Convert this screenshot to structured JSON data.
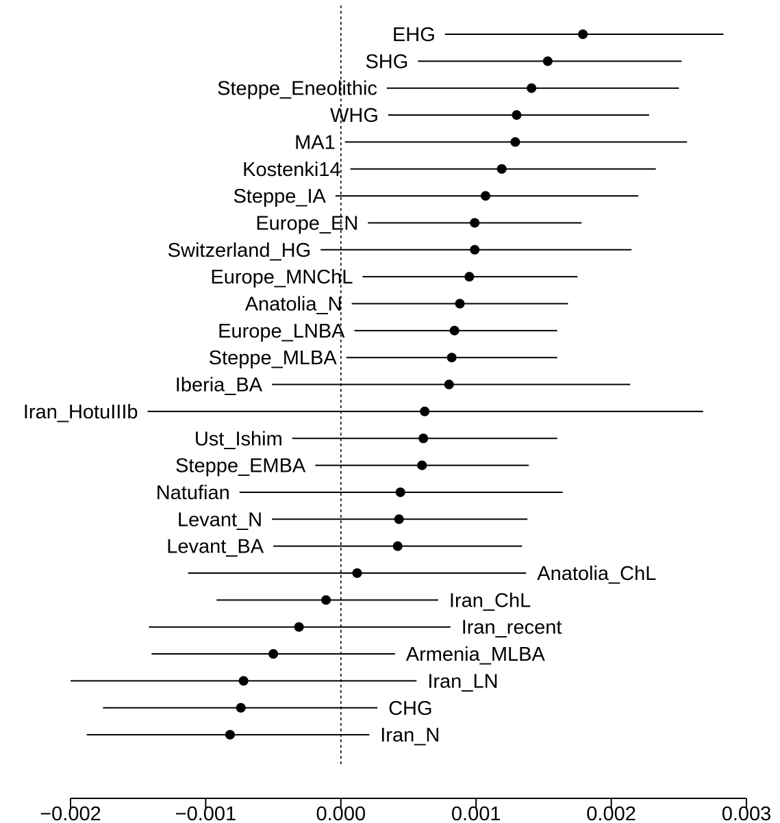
{
  "chart_data": {
    "type": "scatter",
    "title": "",
    "xlabel": "",
    "ylabel": "",
    "xlim": [
      -0.002,
      0.003
    ],
    "x_ticks": [
      -0.002,
      -0.001,
      0.0,
      0.001,
      0.002,
      0.003
    ],
    "x_tick_labels": [
      "−0.002",
      "−0.001",
      "0.000",
      "0.001",
      "0.002",
      "0.003"
    ],
    "reference_line": {
      "x": 0.0,
      "style": "dashed"
    },
    "grid": false,
    "series": [
      {
        "label": "EHG",
        "value": 0.00179,
        "low": 0.00077,
        "high": 0.00283,
        "label_side": "left"
      },
      {
        "label": "SHG",
        "value": 0.00153,
        "low": 0.00057,
        "high": 0.00252,
        "label_side": "left"
      },
      {
        "label": "Steppe_Eneolithic",
        "value": 0.00141,
        "low": 0.00034,
        "high": 0.0025,
        "label_side": "left"
      },
      {
        "label": "WHG",
        "value": 0.0013,
        "low": 0.00035,
        "high": 0.00228,
        "label_side": "left"
      },
      {
        "label": "MA1",
        "value": 0.00129,
        "low": 3e-05,
        "high": 0.00256,
        "label_side": "left"
      },
      {
        "label": "Kostenki14",
        "value": 0.00119,
        "low": 7e-05,
        "high": 0.00233,
        "label_side": "left"
      },
      {
        "label": "Steppe_IA",
        "value": 0.00107,
        "low": -4e-05,
        "high": 0.0022,
        "label_side": "left"
      },
      {
        "label": "Europe_EN",
        "value": 0.00099,
        "low": 0.0002,
        "high": 0.00178,
        "label_side": "left"
      },
      {
        "label": "Switzerland_HG",
        "value": 0.00099,
        "low": -0.00015,
        "high": 0.00215,
        "label_side": "left"
      },
      {
        "label": "Europe_MNChL",
        "value": 0.00095,
        "low": 0.00016,
        "high": 0.00175,
        "label_side": "left"
      },
      {
        "label": "Anatolia_N",
        "value": 0.00088,
        "low": 8e-05,
        "high": 0.00168,
        "label_side": "left"
      },
      {
        "label": "Europe_LNBA",
        "value": 0.00084,
        "low": 0.0001,
        "high": 0.0016,
        "label_side": "left"
      },
      {
        "label": "Steppe_MLBA",
        "value": 0.00082,
        "low": 4e-05,
        "high": 0.0016,
        "label_side": "left"
      },
      {
        "label": "Iberia_BA",
        "value": 0.0008,
        "low": -0.00051,
        "high": 0.00214,
        "label_side": "left"
      },
      {
        "label": "Iran_HotuIIIb",
        "value": 0.00062,
        "low": -0.00143,
        "high": 0.00268,
        "label_side": "left"
      },
      {
        "label": "Ust_Ishim",
        "value": 0.00061,
        "low": -0.00036,
        "high": 0.0016,
        "label_side": "left"
      },
      {
        "label": "Steppe_EMBA",
        "value": 0.0006,
        "low": -0.00019,
        "high": 0.00139,
        "label_side": "left"
      },
      {
        "label": "Natufian",
        "value": 0.00044,
        "low": -0.00075,
        "high": 0.00164,
        "label_side": "left"
      },
      {
        "label": "Levant_N",
        "value": 0.00043,
        "low": -0.00051,
        "high": 0.00138,
        "label_side": "left"
      },
      {
        "label": "Levant_BA",
        "value": 0.00042,
        "low": -0.0005,
        "high": 0.00134,
        "label_side": "left"
      },
      {
        "label": "Anatolia_ChL",
        "value": 0.00012,
        "low": -0.00113,
        "high": 0.00137,
        "label_side": "right"
      },
      {
        "label": "Iran_ChL",
        "value": -0.00011,
        "low": -0.00092,
        "high": 0.00072,
        "label_side": "right"
      },
      {
        "label": "Iran_recent",
        "value": -0.00031,
        "low": -0.00142,
        "high": 0.00081,
        "label_side": "right"
      },
      {
        "label": "Armenia_MLBA",
        "value": -0.0005,
        "low": -0.0014,
        "high": 0.0004,
        "label_side": "right"
      },
      {
        "label": "Iran_LN",
        "value": -0.00072,
        "low": -0.002,
        "high": 0.00056,
        "label_side": "right"
      },
      {
        "label": "CHG",
        "value": -0.00074,
        "low": -0.00176,
        "high": 0.00027,
        "label_side": "right"
      },
      {
        "label": "Iran_N",
        "value": -0.00082,
        "low": -0.00188,
        "high": 0.00021,
        "label_side": "right"
      }
    ]
  }
}
